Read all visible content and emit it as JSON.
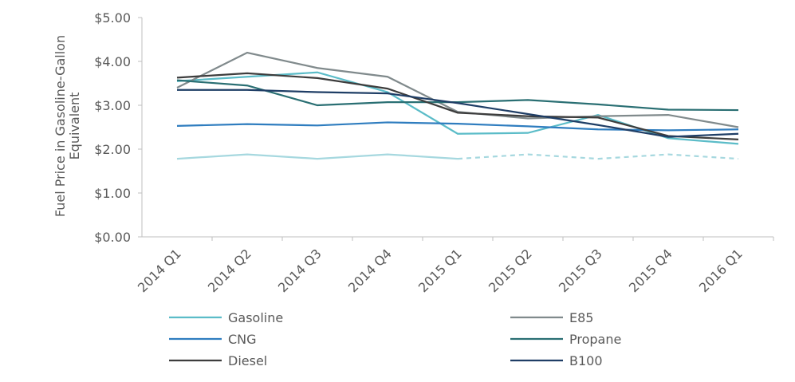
{
  "chart_data": {
    "type": "line",
    "y_label": "Fuel Price in Gasoline-Gallon Equivalent",
    "categories": [
      "2014 Q1",
      "2014 Q2",
      "2014 Q3",
      "2014 Q4",
      "2015 Q1",
      "2015 Q2",
      "2015 Q3",
      "2015 Q4",
      "2016 Q1"
    ],
    "series": [
      {
        "name": "Gasoline",
        "color": "#5bbcc8",
        "values": [
          3.55,
          3.65,
          3.75,
          3.3,
          2.35,
          2.37,
          2.78,
          2.25,
          2.12
        ]
      },
      {
        "name": "E85",
        "color": "#808a8c",
        "values": [
          3.4,
          4.2,
          3.85,
          3.65,
          2.85,
          2.7,
          2.75,
          2.78,
          2.5
        ]
      },
      {
        "name": "CNG",
        "color": "#2f7dbf",
        "values": [
          2.53,
          2.57,
          2.54,
          2.61,
          2.58,
          2.52,
          2.45,
          2.43,
          2.45
        ]
      },
      {
        "name": "Propane",
        "color": "#2a6f73",
        "values": [
          3.57,
          3.45,
          3.0,
          3.07,
          3.07,
          3.12,
          3.02,
          2.9,
          2.89
        ]
      },
      {
        "name": "Diesel",
        "color": "#3d3d3d",
        "values": [
          3.63,
          3.73,
          3.62,
          3.38,
          2.83,
          2.75,
          2.72,
          2.3,
          2.22
        ]
      },
      {
        "name": "B100",
        "color": "#1f3e66",
        "values": [
          3.35,
          3.35,
          3.3,
          3.27,
          3.05,
          2.8,
          2.55,
          2.28,
          2.35
        ]
      },
      {
        "color": "#a6d8df",
        "values": [
          1.78,
          1.88,
          1.78,
          1.88,
          1.78,
          1.88,
          1.78,
          1.88,
          1.78
        ],
        "dashed_from_index": 4
      }
    ],
    "ylim": [
      0,
      5
    ],
    "yticks": [
      {
        "value": 0,
        "label": "$0.00"
      },
      {
        "value": 1,
        "label": "$1.00"
      },
      {
        "value": 2,
        "label": "$2.00"
      },
      {
        "value": 3,
        "label": "$3.00"
      },
      {
        "value": 4,
        "label": "$4.00"
      },
      {
        "value": 5,
        "label": "$5.00"
      }
    ]
  }
}
